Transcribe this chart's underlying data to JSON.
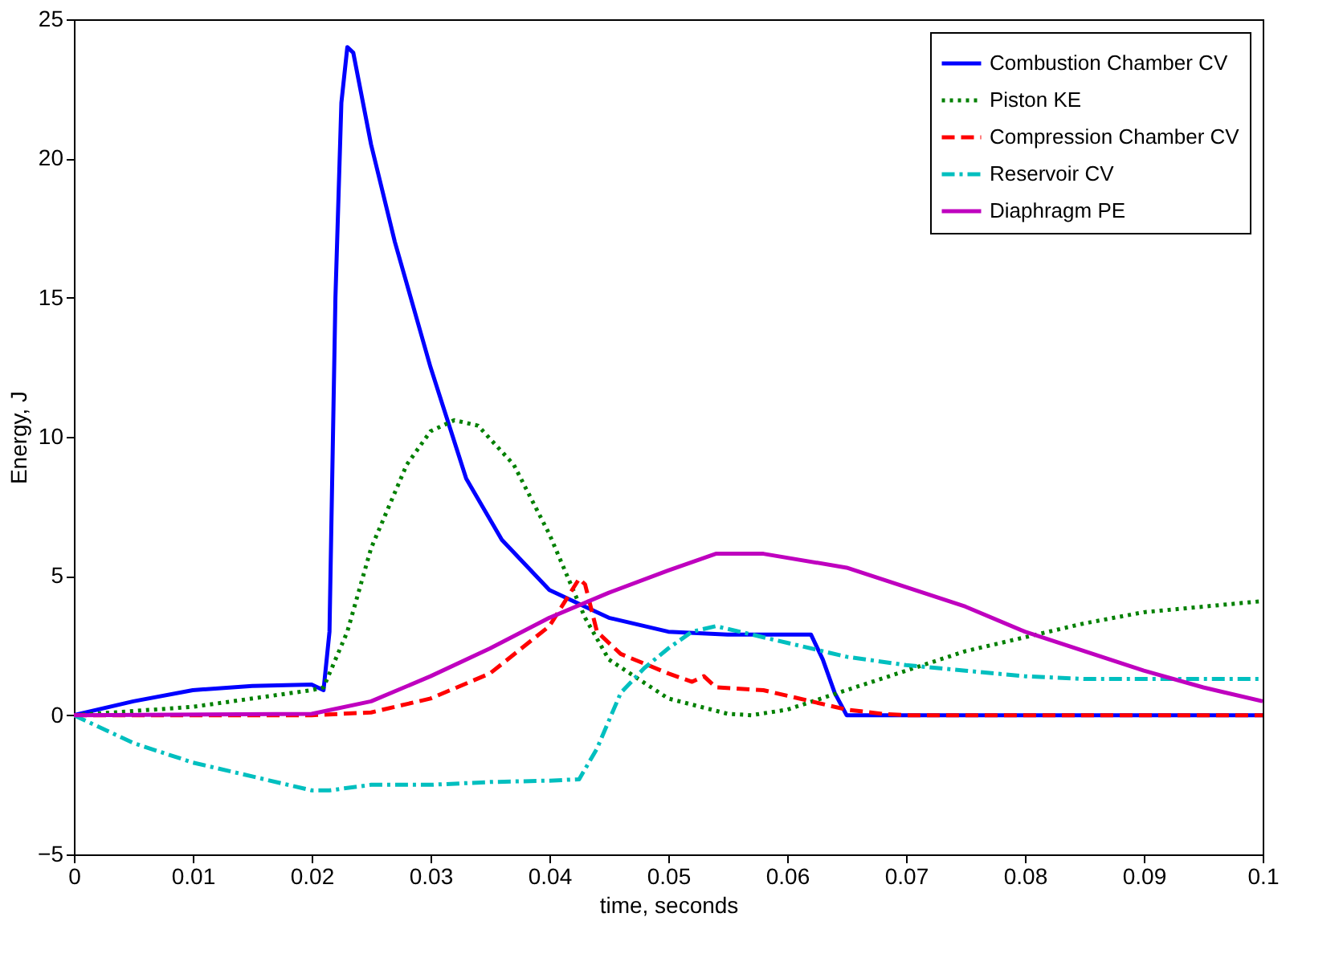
{
  "chart_data": {
    "type": "line",
    "xlabel": "time, seconds",
    "ylabel": "Energy, J",
    "xlim": [
      0,
      0.1
    ],
    "xticks": [
      0,
      0.01,
      0.02,
      0.03,
      0.04,
      0.05,
      0.06,
      0.07,
      0.08,
      0.09,
      0.1
    ],
    "ylim": [
      -5,
      25
    ],
    "yticks": [
      -5,
      0,
      5,
      10,
      15,
      20,
      25
    ],
    "grid": false,
    "legend": "top right",
    "series": [
      {
        "name": "Combustion Chamber CV",
        "color": "#0000ff",
        "line_style": "solid",
        "x": [
          0,
          0.005,
          0.01,
          0.015,
          0.02,
          0.021,
          0.0215,
          0.022,
          0.0225,
          0.023,
          0.0235,
          0.025,
          0.027,
          0.03,
          0.033,
          0.036,
          0.04,
          0.045,
          0.05,
          0.055,
          0.06,
          0.062,
          0.063,
          0.064,
          0.065,
          0.1
        ],
        "values": [
          0,
          0.5,
          0.9,
          1.05,
          1.1,
          0.9,
          3,
          15,
          22,
          24,
          23.8,
          20.5,
          17,
          12.5,
          8.5,
          6.3,
          4.5,
          3.5,
          3,
          2.9,
          2.9,
          2.9,
          2,
          0.8,
          0,
          0
        ]
      },
      {
        "name": "Piston KE",
        "color": "#008000",
        "line_style": "dotted",
        "x": [
          0,
          0.01,
          0.02,
          0.021,
          0.023,
          0.025,
          0.028,
          0.03,
          0.032,
          0.034,
          0.037,
          0.04,
          0.043,
          0.045,
          0.05,
          0.055,
          0.057,
          0.06,
          0.065,
          0.07,
          0.075,
          0.08,
          0.085,
          0.09,
          0.095,
          0.1
        ],
        "values": [
          0,
          0.3,
          0.9,
          1,
          3,
          6,
          9,
          10.2,
          10.6,
          10.4,
          9,
          6.5,
          3.5,
          2,
          0.6,
          0.05,
          0,
          0.2,
          0.9,
          1.6,
          2.3,
          2.8,
          3.3,
          3.7,
          3.9,
          4.1
        ]
      },
      {
        "name": "Compression Chamber CV",
        "color": "#ff0000",
        "line_style": "dashed",
        "x": [
          0,
          0.02,
          0.025,
          0.03,
          0.035,
          0.04,
          0.0425,
          0.043,
          0.044,
          0.046,
          0.05,
          0.052,
          0.053,
          0.054,
          0.058,
          0.06,
          0.065,
          0.068,
          0.07,
          0.1
        ],
        "values": [
          0,
          0,
          0.1,
          0.6,
          1.5,
          3.2,
          4.9,
          4.7,
          3,
          2.2,
          1.5,
          1.2,
          1.4,
          1,
          0.9,
          0.7,
          0.2,
          0.05,
          0,
          0
        ]
      },
      {
        "name": "Reservoir CV",
        "color": "#00bfbf",
        "line_style": "dashdot",
        "x": [
          0,
          0.005,
          0.01,
          0.015,
          0.02,
          0.0215,
          0.025,
          0.03,
          0.035,
          0.04,
          0.0425,
          0.044,
          0.046,
          0.048,
          0.05,
          0.052,
          0.054,
          0.055,
          0.06,
          0.065,
          0.07,
          0.075,
          0.08,
          0.085,
          0.1
        ],
        "values": [
          0,
          -1,
          -1.7,
          -2.2,
          -2.7,
          -2.7,
          -2.5,
          -2.5,
          -2.4,
          -2.35,
          -2.3,
          -1.2,
          0.8,
          1.7,
          2.4,
          3,
          3.2,
          3.1,
          2.6,
          2.1,
          1.8,
          1.6,
          1.4,
          1.3,
          1.3
        ]
      },
      {
        "name": "Diaphragm PE",
        "color": "#bf00bf",
        "line_style": "solid",
        "x": [
          0,
          0.02,
          0.025,
          0.03,
          0.035,
          0.04,
          0.045,
          0.05,
          0.054,
          0.058,
          0.065,
          0.07,
          0.075,
          0.08,
          0.085,
          0.09,
          0.095,
          0.1
        ],
        "values": [
          0,
          0.05,
          0.5,
          1.4,
          2.4,
          3.5,
          4.4,
          5.2,
          5.8,
          5.8,
          5.3,
          4.6,
          3.9,
          3,
          2.3,
          1.6,
          1,
          0.5
        ]
      }
    ]
  }
}
